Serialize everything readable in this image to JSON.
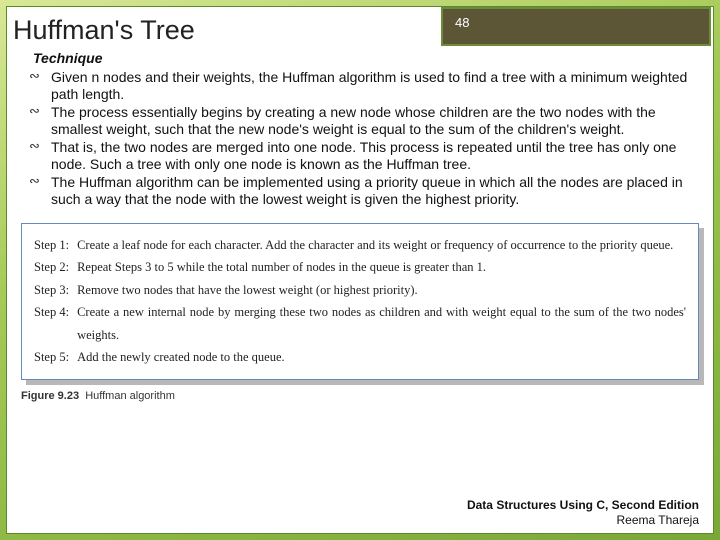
{
  "header": {
    "title": "Huffman's Tree",
    "slide_number": "48",
    "badge_bg": "#5c5637",
    "badge_border": "#6d8c3a"
  },
  "technique": {
    "heading": "Technique",
    "bullets": [
      "Given n nodes and their weights, the Huffman algorithm is used to find a tree with a minimum weighted path length.",
      "The process essentially begins by creating a new node whose children are the two nodes with the smallest weight, such that the new node's weight is equal to the sum of the children's weight.",
      "That is, the two nodes are merged into one node. This process is repeated until the tree has only one node. Such a tree with only one node is known as the Huffman tree.",
      "The Huffman algorithm can be implemented using a priority queue in which all the nodes are placed in such a way that the node with the lowest weight is given the highest priority."
    ]
  },
  "steps": {
    "items": [
      {
        "label": "Step 1:",
        "text": "Create a leaf node for each character. Add the character and its weight or frequency of occurrence to the priority queue."
      },
      {
        "label": "Step 2:",
        "text": "Repeat Steps 3 to 5 while the total number of nodes in the queue is greater than 1."
      },
      {
        "label": "Step 3:",
        "text": "Remove two nodes that have the lowest weight (or highest priority)."
      },
      {
        "label": "Step 4:",
        "text": "Create a new internal node by merging these two nodes as children and with weight equal to the sum of the two nodes' weights."
      },
      {
        "label": "Step 5:",
        "text": "Add the newly created node to the queue."
      }
    ],
    "box_border_color": "#6688bb",
    "box_shadow_color": "#b8b8b8",
    "font_family": "Comic Sans MS"
  },
  "caption": {
    "label": "Figure 9.23",
    "text": "Huffman algorithm"
  },
  "footer": {
    "line1": "Data Structures Using C, Second Edition",
    "line2": "Reema Thareja"
  },
  "colors": {
    "page_gradient_from": "#d8e896",
    "page_gradient_to": "#7aa838",
    "slide_border": "#5a8a2a"
  }
}
